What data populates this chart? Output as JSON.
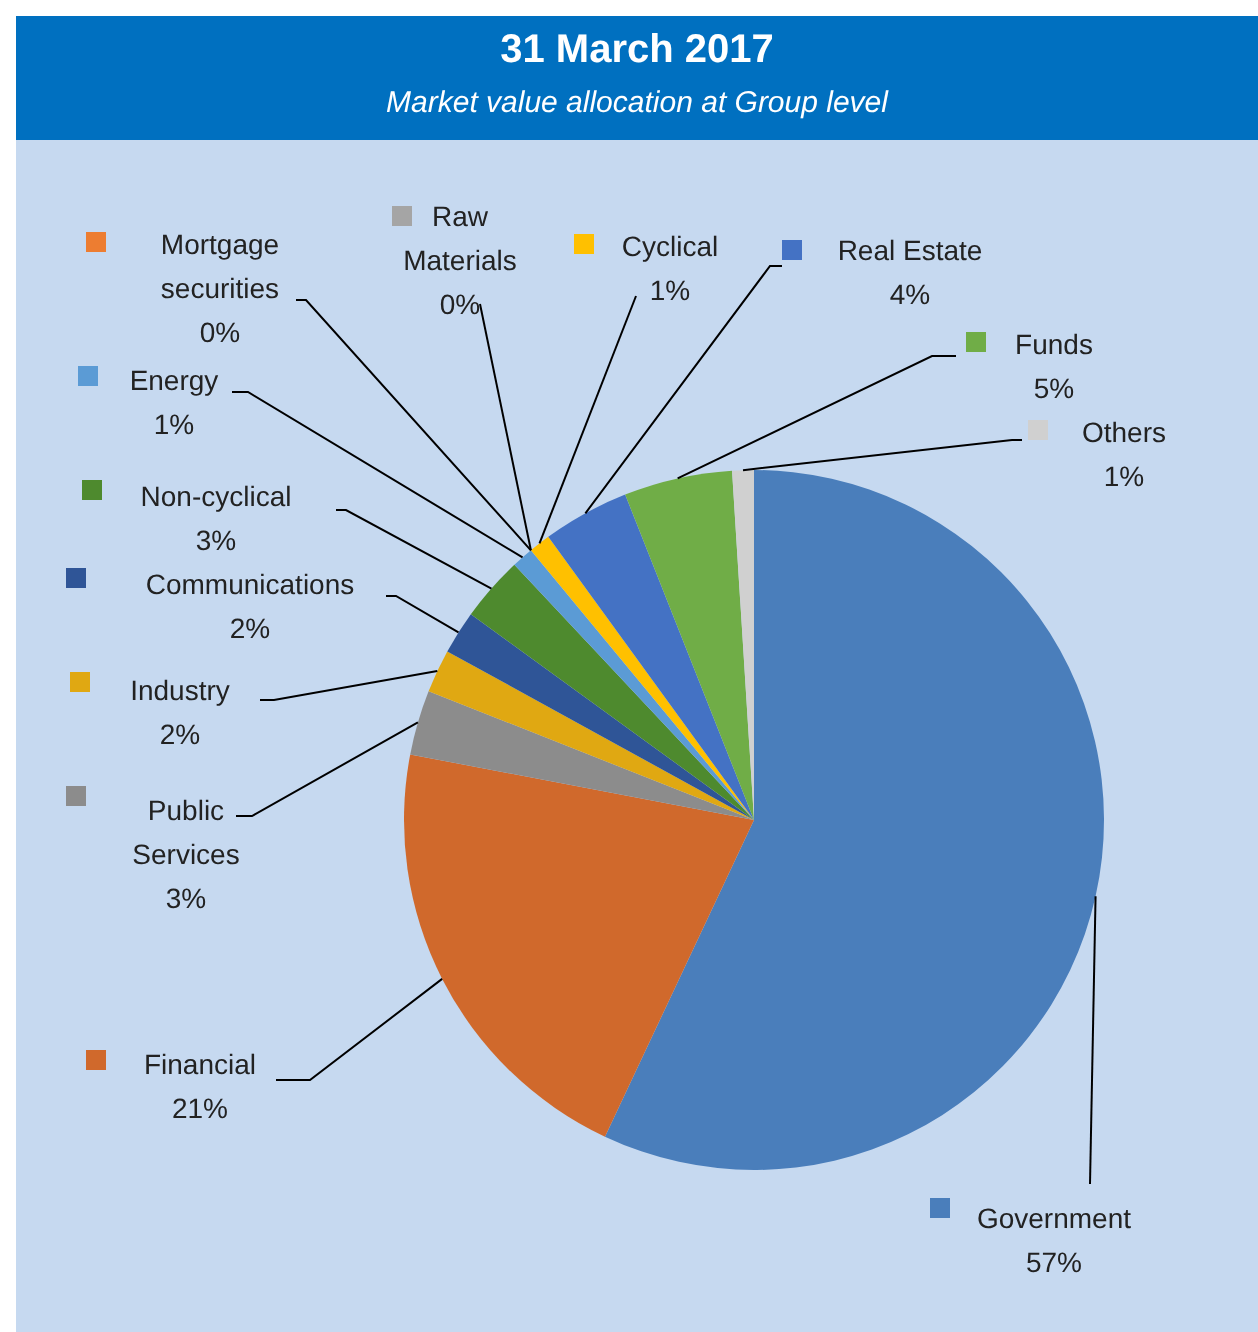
{
  "chart_data": {
    "type": "pie",
    "title": "31 March 2017",
    "subtitle": "Market value allocation at Group level",
    "categories": [
      "Government",
      "Financial",
      "Public Services",
      "Industry",
      "Communications",
      "Non-cyclical",
      "Energy",
      "Mortgage securities",
      "Raw Materials",
      "Cyclical",
      "Real Estate",
      "Funds",
      "Others"
    ],
    "values": [
      57,
      21,
      3,
      2,
      2,
      3,
      1,
      0,
      0,
      1,
      4,
      5,
      1
    ],
    "value_labels": [
      "57%",
      "21%",
      "3%",
      "2%",
      "2%",
      "3%",
      "1%",
      "0%",
      "0%",
      "1%",
      "4%",
      "5%",
      "1%"
    ],
    "colors": [
      "#4a7ebb",
      "#d0692c",
      "#8c8c8c",
      "#e0a812",
      "#2f5597",
      "#4e8a2e",
      "#5b9bd5",
      "#ed7d31",
      "#a5a5a5",
      "#ffc000",
      "#4472c4",
      "#70ad47",
      "#d0d0d0"
    ],
    "legend": "left"
  }
}
